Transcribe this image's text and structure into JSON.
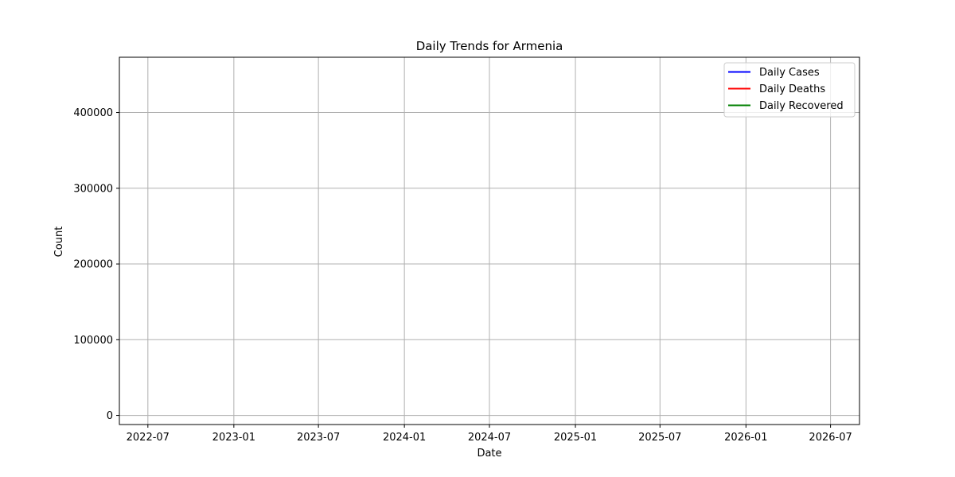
{
  "chart_data": {
    "type": "line",
    "title": "Daily Trends for Armenia",
    "xlabel": "Date",
    "ylabel": "Count",
    "x_axis_type": "date",
    "xlim": [
      "2022-05-01",
      "2026-09-01"
    ],
    "ylim": [
      -12000,
      473000
    ],
    "x_ticks": [
      "2022-07",
      "2023-01",
      "2023-07",
      "2024-01",
      "2024-07",
      "2025-01",
      "2025-07",
      "2026-01",
      "2026-07"
    ],
    "x_tick_dates": [
      "2022-07-01",
      "2023-01-01",
      "2023-07-01",
      "2024-01-01",
      "2024-07-01",
      "2025-01-01",
      "2025-07-01",
      "2026-01-01",
      "2026-07-01"
    ],
    "y_ticks": [
      0,
      100000,
      200000,
      300000,
      400000
    ],
    "grid": true,
    "legend_position": "top-right",
    "series": [
      {
        "name": "Daily Cases",
        "color": "#0000ff",
        "points": []
      },
      {
        "name": "Daily Deaths",
        "color": "#ff0000",
        "points": []
      },
      {
        "name": "Daily Recovered",
        "color": "#008000",
        "points": []
      }
    ]
  }
}
